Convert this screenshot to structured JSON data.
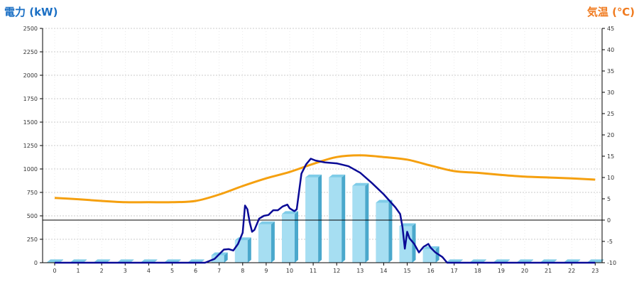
{
  "chart_data": {
    "type": "bar",
    "left_axis_title": "電力 (kW)",
    "right_axis_title": "気温 (℃)",
    "x": [
      "0",
      "1",
      "2",
      "3",
      "4",
      "5",
      "6",
      "7",
      "8",
      "9",
      "10",
      "11",
      "12",
      "13",
      "14",
      "15",
      "16",
      "17",
      "18",
      "19",
      "20",
      "21",
      "22",
      "23"
    ],
    "y_left": {
      "min": 0,
      "max": 2500,
      "step": 250
    },
    "y_right": {
      "min": -10,
      "max": 45,
      "step": 5
    },
    "bars": {
      "axis": "left",
      "values": [
        5,
        5,
        5,
        5,
        5,
        5,
        5,
        80,
        240,
        410,
        520,
        910,
        910,
        820,
        640,
        390,
        145,
        5,
        5,
        5,
        5,
        5,
        5,
        5
      ]
    },
    "power_line": {
      "axis": "left",
      "points": [
        [
          0,
          0
        ],
        [
          1,
          0
        ],
        [
          2,
          0
        ],
        [
          3,
          0
        ],
        [
          4,
          0
        ],
        [
          5,
          0
        ],
        [
          6,
          0
        ],
        [
          6.4,
          0
        ],
        [
          6.8,
          40
        ],
        [
          7.0,
          90
        ],
        [
          7.2,
          140
        ],
        [
          7.4,
          145
        ],
        [
          7.6,
          130
        ],
        [
          7.8,
          200
        ],
        [
          8.0,
          320
        ],
        [
          8.1,
          610
        ],
        [
          8.2,
          570
        ],
        [
          8.3,
          430
        ],
        [
          8.4,
          330
        ],
        [
          8.5,
          350
        ],
        [
          8.7,
          470
        ],
        [
          8.9,
          500
        ],
        [
          9.1,
          510
        ],
        [
          9.3,
          560
        ],
        [
          9.5,
          560
        ],
        [
          9.7,
          600
        ],
        [
          9.9,
          620
        ],
        [
          10.0,
          580
        ],
        [
          10.2,
          550
        ],
        [
          10.3,
          570
        ],
        [
          10.5,
          950
        ],
        [
          10.7,
          1050
        ],
        [
          10.9,
          1110
        ],
        [
          11.1,
          1090
        ],
        [
          11.5,
          1070
        ],
        [
          12,
          1060
        ],
        [
          12.5,
          1030
        ],
        [
          13,
          960
        ],
        [
          13.5,
          850
        ],
        [
          14,
          730
        ],
        [
          14.5,
          590
        ],
        [
          14.7,
          520
        ],
        [
          14.8,
          380
        ],
        [
          14.9,
          150
        ],
        [
          15.0,
          330
        ],
        [
          15.1,
          260
        ],
        [
          15.3,
          200
        ],
        [
          15.5,
          110
        ],
        [
          15.7,
          170
        ],
        [
          15.9,
          200
        ],
        [
          16.0,
          160
        ],
        [
          16.2,
          110
        ],
        [
          16.5,
          60
        ],
        [
          16.7,
          0
        ],
        [
          17,
          0
        ],
        [
          18,
          0
        ],
        [
          19,
          0
        ],
        [
          20,
          0
        ],
        [
          21,
          0
        ],
        [
          22,
          0
        ],
        [
          23,
          0
        ]
      ]
    },
    "temperature_line": {
      "axis": "right",
      "values": [
        5.2,
        4.9,
        4.5,
        4.2,
        4.2,
        4.2,
        4.5,
        6.0,
        8.0,
        9.8,
        11.3,
        13.2,
        14.8,
        15.2,
        14.8,
        14.2,
        12.8,
        11.5,
        11.1,
        10.6,
        10.2,
        10.0,
        9.8,
        9.5
      ]
    },
    "grid": true,
    "colors": {
      "bar_top": "#7fcce8",
      "bar_light": "#a6def2",
      "bar_dark": "#4aa8cc",
      "power_line": "#0a0a96",
      "temperature_line": "#f5a00f",
      "left_title": "#1a6fc4",
      "right_title": "#f07a1e",
      "grid": "#bbbbbb"
    }
  }
}
